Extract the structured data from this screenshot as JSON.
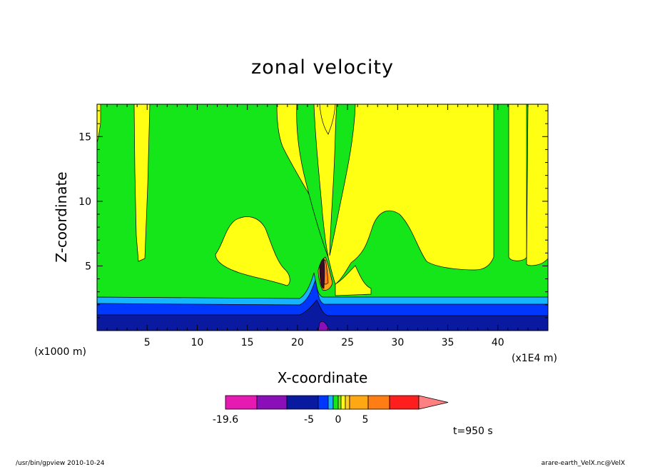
{
  "chart_data": {
    "type": "heatmap",
    "title": "zonal velocity",
    "xlabel": "X-coordinate",
    "ylabel": "Z-coordinate",
    "x_unit": "(x1E4 m)",
    "y_unit": "(x1000 m)",
    "xlim": [
      0,
      45
    ],
    "ylim": [
      0,
      17.5
    ],
    "x_ticks": [
      "5",
      "10",
      "15",
      "20",
      "25",
      "30",
      "35",
      "40"
    ],
    "y_ticks": [
      "5",
      "10",
      "15"
    ],
    "colorbar": {
      "labels": [
        "-19.6",
        "-5",
        "0",
        "5"
      ],
      "colors": [
        "#e619b3",
        "#8a0fb8",
        "#0a1aa0",
        "#0037ff",
        "#15b4ff",
        "#14e61a",
        "#7de614",
        "#ffff14",
        "#ffcd28",
        "#ffa814",
        "#ff7d14",
        "#ff1e1e",
        "#ff8080"
      ]
    },
    "annotation": "t=950 s"
  },
  "footer": {
    "left": "/usr/bin/gpview   2010-10-24",
    "right": "arare-earth_VelX.nc@VelX"
  }
}
